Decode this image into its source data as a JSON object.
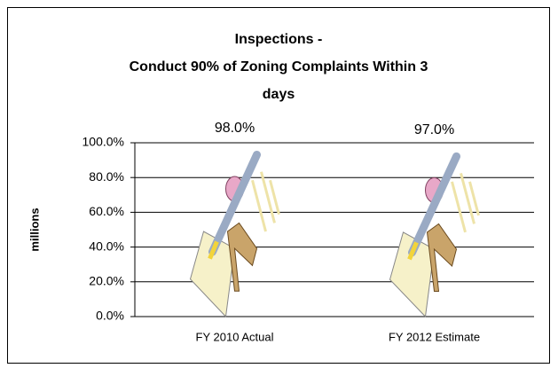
{
  "chart_data": {
    "type": "bar",
    "title": [
      "Inspections -",
      "Conduct 90% of Zoning Complaints Within 3",
      "days"
    ],
    "y_label": "millions",
    "categories": [
      "FY 2010 Actual",
      "FY 2012 Estimate"
    ],
    "values": [
      98,
      97
    ],
    "value_labels": [
      "98.0%",
      "97.0%"
    ],
    "ylim": [
      0,
      100
    ],
    "yticks": [
      {
        "value": 0,
        "label": "0.0%"
      },
      {
        "value": 20,
        "label": "20.0%"
      },
      {
        "value": 40,
        "label": "40.0%"
      },
      {
        "value": 60,
        "label": "60.0%"
      },
      {
        "value": 80,
        "label": "80.0%"
      },
      {
        "value": 100,
        "label": "100.0%"
      }
    ],
    "grid": true
  }
}
